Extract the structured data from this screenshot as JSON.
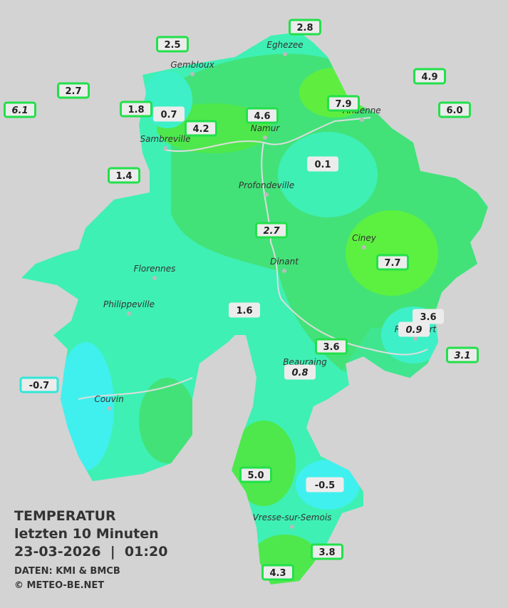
{
  "stations": [
    {
      "label": "2.8"
    },
    {
      "label": "2.5"
    },
    {
      "label": "4.9"
    },
    {
      "label": "2.7"
    },
    {
      "label": "7.9"
    },
    {
      "label": "6.1"
    },
    {
      "label": "1.8"
    },
    {
      "label": "0.7"
    },
    {
      "label": "4.6"
    },
    {
      "label": "6.0"
    },
    {
      "label": "4.2"
    },
    {
      "label": "0.1"
    },
    {
      "label": "1.4"
    },
    {
      "label": "2.7"
    },
    {
      "label": "7.7"
    },
    {
      "label": "1.6"
    },
    {
      "label": "3.6"
    },
    {
      "label": "0.9"
    },
    {
      "label": "3.1"
    },
    {
      "label": "3.6"
    },
    {
      "label": "0.8"
    },
    {
      "label": "-0.7"
    },
    {
      "label": "5.0"
    },
    {
      "label": "-0.5"
    },
    {
      "label": "3.8"
    },
    {
      "label": "4.3"
    }
  ],
  "cities": [
    "Eghezee",
    "Gembloux",
    "Andenne",
    "Namur",
    "Sambreville",
    "Profondeville",
    "Ciney",
    "Dinant",
    "Florennes",
    "Philippeville",
    "Rochefort",
    "Beauraing",
    "Couvin",
    "Vresse-sur-Semois"
  ],
  "legend": {
    "title": "TEMPERATUR",
    "period": "letzten 10 Minuten",
    "timestamp": "23-03-2026  |  01:20",
    "source": "DATEN: KMI & BMCB",
    "copyright": "© METEO-BE.NET"
  }
}
